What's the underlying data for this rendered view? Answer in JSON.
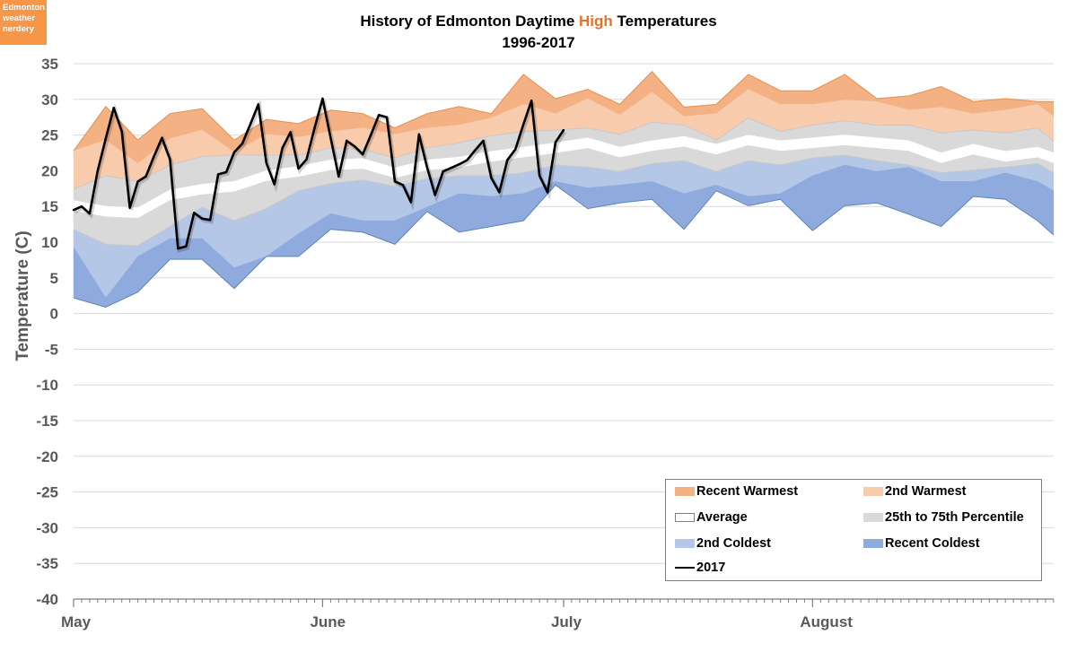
{
  "logo": {
    "line1": "Edmonton",
    "line2": "weather",
    "line3": "nerdery",
    "color": "#F79646"
  },
  "chart_data": {
    "type": "area",
    "title_parts": [
      "History of Edmonton Daytime ",
      "High",
      " Temperatures"
    ],
    "subtitle": "1996-2017",
    "title_highlight_color": "#E8712A",
    "ylabel": "Temperature (C)",
    "xlabel": "",
    "ylim": [
      -40,
      35
    ],
    "y_ticks": [
      35,
      30,
      25,
      20,
      15,
      10,
      5,
      0,
      -5,
      -10,
      -15,
      -20,
      -25,
      -30,
      -35,
      -40
    ],
    "x_range": [
      "May 1",
      "Aug 31"
    ],
    "x_tick_labels": [
      "May",
      "June",
      "July",
      "August"
    ],
    "grid": true,
    "legend_position": "bottom-right",
    "band_x": [
      "May 1",
      "May 5",
      "May 9",
      "May 13",
      "May 17",
      "May 21",
      "May 25",
      "May 29",
      "Jun 2",
      "Jun 6",
      "Jun 10",
      "Jun 14",
      "Jun 18",
      "Jun 22",
      "Jun 26",
      "Jun 30",
      "Jul 4",
      "Jul 8",
      "Jul 12",
      "Jul 16",
      "Jul 20",
      "Jul 24",
      "Jul 28",
      "Aug 1",
      "Aug 5",
      "Aug 9",
      "Aug 13",
      "Aug 17",
      "Aug 21",
      "Aug 25",
      "Aug 29",
      "Aug 31"
    ],
    "boundaries": {
      "recent_warmest": [
        22.8,
        29,
        24.3,
        28,
        28.7,
        24.3,
        27.2,
        26.6,
        28.5,
        28,
        26,
        28,
        29,
        28,
        33.5,
        30.1,
        31.4,
        29.3,
        33.9,
        28.9,
        29.3,
        33.5,
        31.2,
        31.2,
        33.5,
        30.1,
        30.5,
        31.8,
        29.7,
        30.1,
        29.7,
        29.7
      ],
      "second_warmest": [
        22.8,
        24.3,
        21,
        24.5,
        25.7,
        22.6,
        25.1,
        24.7,
        25.5,
        26,
        25.1,
        26,
        26.4,
        27.4,
        29.3,
        28,
        30.1,
        27.8,
        31,
        27.6,
        28,
        31.4,
        29.3,
        29.3,
        29.9,
        29.7,
        28.5,
        28.9,
        28,
        28.5,
        29.3,
        27.6
      ],
      "percentile_75": [
        17.4,
        19.3,
        18.5,
        20.8,
        22,
        22.2,
        22.2,
        22.2,
        23.2,
        23,
        21.8,
        23.2,
        23.9,
        24.9,
        25.5,
        25.7,
        26,
        25.1,
        26.8,
        26.4,
        24.3,
        27.4,
        25.5,
        26.4,
        27,
        26.4,
        26.4,
        25.3,
        25.7,
        25.3,
        26,
        24.1
      ],
      "average": [
        15.1,
        14.3,
        14.1,
        16.6,
        17.4,
        17.8,
        19.3,
        19.9,
        20.8,
        21,
        19.7,
        20.8,
        21.2,
        22,
        22.6,
        23.2,
        23.9,
        22.6,
        23.5,
        24.1,
        23,
        24.3,
        23.5,
        23.9,
        24.3,
        23.9,
        23.5,
        21.8,
        23,
        22,
        22.6,
        21.8
      ],
      "percentile_25": [
        11.8,
        9.7,
        9.5,
        12.2,
        14.9,
        13,
        14.7,
        17.2,
        18.2,
        18.7,
        17.8,
        18.9,
        19.3,
        19.3,
        19.7,
        20.8,
        20.5,
        19.9,
        21,
        21.4,
        19.9,
        21.4,
        20.8,
        21.8,
        22.2,
        21.4,
        20.8,
        19.7,
        20.1,
        20.5,
        21,
        19.7
      ],
      "second_coldest": [
        9.3,
        2.2,
        8,
        10.5,
        10.5,
        6.4,
        8,
        11.2,
        14,
        13,
        13,
        14.9,
        16.8,
        16.4,
        16.8,
        18.5,
        17.6,
        18,
        18.5,
        16.8,
        18,
        16.4,
        16.8,
        19.3,
        20.8,
        19.9,
        20.5,
        18.5,
        18.5,
        19.7,
        18.5,
        17.2
      ],
      "recent_coldest": [
        2.2,
        0.9,
        3,
        7.6,
        7.6,
        3.5,
        8,
        8,
        11.8,
        11.4,
        9.7,
        14.3,
        11.4,
        12.2,
        13,
        18,
        14.7,
        15.5,
        16,
        11.8,
        17.2,
        15.1,
        16,
        11.6,
        15.1,
        15.5,
        13.9,
        12.2,
        16.4,
        16,
        13,
        11
      ]
    },
    "series": [
      {
        "name": "Recent Warmest",
        "color": "#F4B183"
      },
      {
        "name": "2nd Warmest",
        "color": "#F8CBAD"
      },
      {
        "name": "Average",
        "color": "#FFFFFF"
      },
      {
        "name": "25th to 75th Percentile",
        "color": "#D9D9D9"
      },
      {
        "name": "2nd Coldest",
        "color": "#B4C7E7"
      },
      {
        "name": "Recent Coldest",
        "color": "#8FAADC"
      },
      {
        "name": "2017",
        "color": "#000000",
        "x": [
          "May 1",
          "May 2",
          "May 3",
          "May 4",
          "May 5",
          "May 6",
          "May 7",
          "May 8",
          "May 9",
          "May 10",
          "May 11",
          "May 12",
          "May 13",
          "May 14",
          "May 15",
          "May 16",
          "May 17",
          "May 18",
          "May 19",
          "May 20",
          "May 21",
          "May 22",
          "May 23",
          "May 24",
          "May 25",
          "May 26",
          "May 27",
          "May 28",
          "May 29",
          "May 30",
          "May 31",
          "Jun 1",
          "Jun 2",
          "Jun 3",
          "Jun 4",
          "Jun 5",
          "Jun 6",
          "Jun 7",
          "Jun 8",
          "Jun 9",
          "Jun 10",
          "Jun 11",
          "Jun 12",
          "Jun 13",
          "Jun 14",
          "Jun 15",
          "Jun 16",
          "Jun 17",
          "Jun 18",
          "Jun 19",
          "Jun 20",
          "Jun 21",
          "Jun 22",
          "Jun 23",
          "Jun 24",
          "Jun 25",
          "Jun 26",
          "Jun 27",
          "Jun 28",
          "Jun 29",
          "Jun 30",
          "Jul 1"
        ],
        "values": [
          14.5,
          15.0,
          14.0,
          20.0,
          24.5,
          28.8,
          25.5,
          14.8,
          18.5,
          19.2,
          22.0,
          24.6,
          21.6,
          9.1,
          9.4,
          14.1,
          13.3,
          13.1,
          19.5,
          19.8,
          22.6,
          23.8,
          26.5,
          29.3,
          21.1,
          18.1,
          23.2,
          25.4,
          20.3,
          21.6,
          26.0,
          30.1,
          24.6,
          19.2,
          24.2,
          23.4,
          22.3,
          25.0,
          27.8,
          27.5,
          18.5,
          18.0,
          15.6,
          25.1,
          20.5,
          16.6,
          19.9,
          20.4,
          20.9,
          21.5,
          22.9,
          24.2,
          19.0,
          17.0,
          21.5,
          23.0,
          26.5,
          29.8,
          19.3,
          17.0,
          24.0,
          25.7
        ]
      }
    ]
  }
}
